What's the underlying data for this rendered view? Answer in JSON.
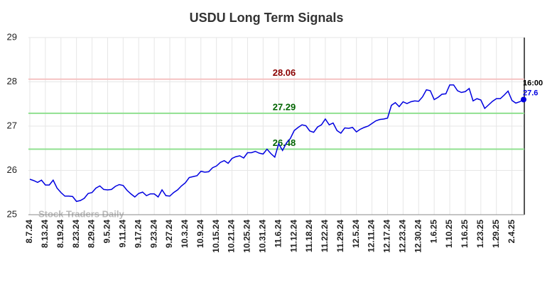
{
  "chart_data": {
    "type": "line",
    "title": "USDU Long Term Signals",
    "watermark": "Stock Traders Daily",
    "categories": [
      "8.7.24",
      null,
      null,
      null,
      "8.13.24",
      null,
      null,
      null,
      "8.19.24",
      null,
      null,
      null,
      "8.23.24",
      null,
      null,
      null,
      "8.29.24",
      null,
      null,
      null,
      "9.5.24",
      null,
      null,
      null,
      "9.11.24",
      null,
      null,
      null,
      "9.17.24",
      null,
      null,
      null,
      "9.23.24",
      null,
      null,
      null,
      "9.27.24",
      null,
      null,
      null,
      "10.3.24",
      null,
      null,
      null,
      "10.9.24",
      null,
      null,
      null,
      "10.15.24",
      null,
      null,
      null,
      "10.21.24",
      null,
      null,
      null,
      "10.25.24",
      null,
      null,
      null,
      "10.31.24",
      null,
      null,
      null,
      "11.6.24",
      null,
      null,
      null,
      "11.12.24",
      null,
      null,
      null,
      "11.18.24",
      null,
      null,
      null,
      "11.22.24",
      null,
      null,
      null,
      "11.29.24",
      null,
      null,
      null,
      "12.5.24",
      null,
      null,
      null,
      "12.11.24",
      null,
      null,
      null,
      "12.17.24",
      null,
      null,
      null,
      "12.23.24",
      null,
      null,
      null,
      "12.30.24",
      null,
      null,
      null,
      "1.6.25",
      null,
      null,
      null,
      "1.10.25",
      null,
      null,
      null,
      "1.16.25",
      null,
      null,
      null,
      "1.23.25",
      null,
      null,
      null,
      "1.29.25",
      null,
      null,
      null,
      "2.4.25",
      null,
      null,
      null
    ],
    "series": [
      {
        "name": "USDU",
        "color": "#0000e0",
        "values": [
          25.8,
          25.77,
          25.73,
          25.78,
          25.67,
          25.67,
          25.78,
          25.6,
          25.5,
          25.42,
          25.42,
          25.41,
          25.3,
          25.32,
          25.37,
          25.48,
          25.5,
          25.6,
          25.65,
          25.57,
          25.56,
          25.57,
          25.64,
          25.68,
          25.66,
          25.55,
          25.47,
          25.4,
          25.48,
          25.51,
          25.43,
          25.47,
          25.47,
          25.4,
          25.56,
          25.43,
          25.42,
          25.5,
          25.56,
          25.65,
          25.72,
          25.84,
          25.86,
          25.88,
          25.98,
          25.96,
          25.97,
          26.06,
          26.1,
          26.18,
          26.22,
          26.16,
          26.27,
          26.31,
          26.33,
          26.28,
          26.4,
          26.4,
          26.43,
          26.39,
          26.37,
          26.48,
          26.38,
          26.3,
          26.6,
          26.45,
          26.62,
          26.72,
          26.9,
          26.97,
          27.03,
          27.01,
          26.89,
          26.86,
          26.98,
          27.03,
          27.16,
          27.03,
          27.07,
          26.9,
          26.84,
          26.96,
          26.95,
          26.97,
          26.87,
          26.93,
          26.97,
          27.0,
          27.06,
          27.12,
          27.15,
          27.16,
          27.18,
          27.47,
          27.53,
          27.44,
          27.55,
          27.51,
          27.55,
          27.57,
          27.56,
          27.66,
          27.82,
          27.8,
          27.6,
          27.65,
          27.72,
          27.73,
          27.93,
          27.93,
          27.8,
          27.76,
          27.78,
          27.85,
          27.57,
          27.62,
          27.59,
          27.4,
          27.48,
          27.56,
          27.62,
          27.62,
          27.7,
          27.79,
          27.58,
          27.52,
          27.55,
          27.6
        ]
      }
    ],
    "last_time": "16:00",
    "levels": [
      {
        "value": 28.06,
        "color": "#f5c2c2",
        "label_color": "#8b0000"
      },
      {
        "value": 27.29,
        "color": "#90e090",
        "label_color": "#006400"
      },
      {
        "value": 26.48,
        "color": "#90e090",
        "label_color": "#006400"
      }
    ],
    "ylim": [
      25,
      29
    ],
    "yticks": [
      25,
      26,
      27,
      28,
      29
    ],
    "grid": true
  }
}
